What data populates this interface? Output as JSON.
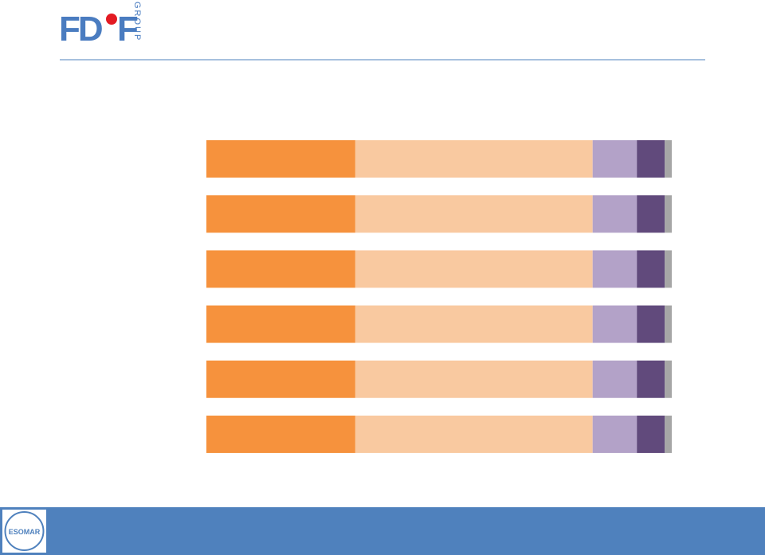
{
  "header": {
    "logo": [
      "FD",
      "F"
    ],
    "logo_sub": "GROUP"
  },
  "footer": {
    "badge": "ESOMAR"
  },
  "chart_data": {
    "type": "bar",
    "orientation": "horizontal",
    "stacked": true,
    "categories": [
      null,
      null,
      null,
      null,
      null,
      null
    ],
    "xlim": [
      0,
      100
    ],
    "series": [
      {
        "color": "#f6923d",
        "values": [
          32,
          32,
          32,
          32,
          32,
          32
        ]
      },
      {
        "color": "#f9c9a0",
        "values": [
          51,
          51,
          51,
          51,
          51,
          51
        ]
      },
      {
        "color": "#b3a2c8",
        "values": [
          9.5,
          9.5,
          9.5,
          9.5,
          9.5,
          9.5
        ]
      },
      {
        "color": "#614a7c",
        "values": [
          6,
          6,
          6,
          6,
          6,
          6
        ]
      },
      {
        "color": "#a6a6a6",
        "values": [
          1.5,
          1.5,
          1.5,
          1.5,
          1.5,
          1.5
        ]
      }
    ]
  }
}
